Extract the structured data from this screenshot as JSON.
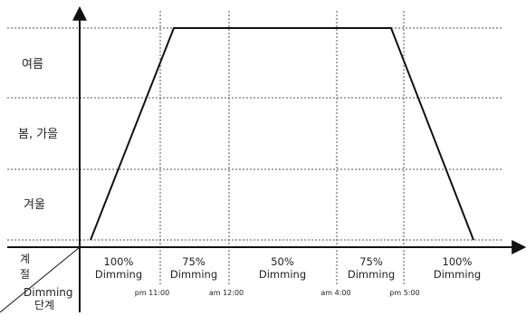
{
  "seasons": [
    "여름",
    "봄, 가을",
    "겨울"
  ],
  "corner": {
    "season_label": [
      "계",
      "절"
    ],
    "dimming_label": [
      "Dimming",
      "단계"
    ]
  },
  "periods": [
    {
      "percent": "100%",
      "word": "Dimming"
    },
    {
      "percent": "75%",
      "word": "Dimming"
    },
    {
      "percent": "50%",
      "word": "Dimming"
    },
    {
      "percent": "75%",
      "word": "Dimming"
    },
    {
      "percent": "100%",
      "word": "Dimming"
    }
  ],
  "times": [
    "pm 11:00",
    "am 12:00",
    "am 4:00",
    "pm 5:00"
  ],
  "colors": {
    "line": "#111111",
    "grid": "#555555"
  }
}
